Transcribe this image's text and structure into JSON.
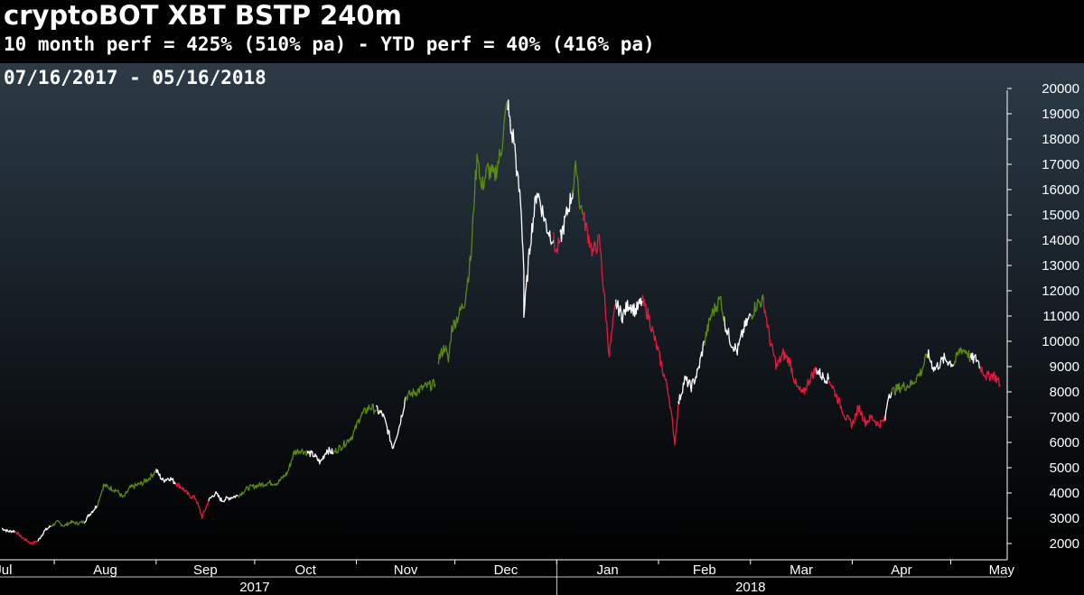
{
  "header": {
    "title": "cryptoBOT XBT BSTP 240m",
    "subtitle": "10 month perf = 425% (510% pa) - YTD perf = 40% (416% pa)",
    "date_range": "07/16/2017 - 05/16/2018"
  },
  "colors": {
    "up_signal": "#5a8a12",
    "neutral": "#ffffff",
    "down_signal": "#e8173c",
    "axis_text": "#ffffff",
    "background_top": "#2c3b47",
    "background_bottom": "#000000"
  },
  "chart_data": {
    "type": "line",
    "title": "cryptoBOT XBT BSTP 240m",
    "xlabel": "",
    "ylabel": "",
    "ylim": [
      1400,
      20800
    ],
    "y_ticks": [
      2000,
      3000,
      4000,
      5000,
      6000,
      7000,
      8000,
      9000,
      10000,
      11000,
      12000,
      13000,
      14000,
      15000,
      16000,
      17000,
      18000,
      19000,
      20000
    ],
    "x_start": "2017-07-16",
    "x_end": "2018-05-16",
    "month_ticks": [
      {
        "label": "Jul",
        "date": "2017-07-01"
      },
      {
        "label": "Aug",
        "date": "2017-08-01"
      },
      {
        "label": "Sep",
        "date": "2017-09-01"
      },
      {
        "label": "Oct",
        "date": "2017-10-01"
      },
      {
        "label": "Nov",
        "date": "2017-11-01"
      },
      {
        "label": "Dec",
        "date": "2017-12-01"
      },
      {
        "label": "Jan",
        "date": "2018-01-01"
      },
      {
        "label": "Feb",
        "date": "2018-02-01"
      },
      {
        "label": "Mar",
        "date": "2018-03-01"
      },
      {
        "label": "Apr",
        "date": "2018-04-01"
      },
      {
        "label": "May",
        "date": "2018-05-01"
      }
    ],
    "year_labels": [
      {
        "label": "2017",
        "date": "2017-10-01"
      },
      {
        "label": "2018",
        "date": "2018-03-01"
      }
    ],
    "segments": [
      {
        "signal": "neutral",
        "points": [
          [
            "2017-07-16",
            2600
          ],
          [
            "2017-07-18",
            2480
          ],
          [
            "2017-07-20",
            2500
          ]
        ]
      },
      {
        "signal": "down",
        "points": [
          [
            "2017-07-20",
            2500
          ],
          [
            "2017-07-22",
            2250
          ],
          [
            "2017-07-25",
            2000
          ],
          [
            "2017-07-27",
            2100
          ]
        ]
      },
      {
        "signal": "neutral",
        "points": [
          [
            "2017-07-27",
            2100
          ],
          [
            "2017-07-29",
            2500
          ],
          [
            "2017-07-31",
            2700
          ]
        ]
      },
      {
        "signal": "up",
        "points": [
          [
            "2017-07-31",
            2700
          ],
          [
            "2017-08-02",
            2850
          ],
          [
            "2017-08-04",
            2700
          ],
          [
            "2017-08-06",
            2850
          ],
          [
            "2017-08-08",
            2800
          ],
          [
            "2017-08-10",
            2850
          ]
        ]
      },
      {
        "signal": "neutral",
        "points": [
          [
            "2017-08-10",
            2850
          ],
          [
            "2017-08-12",
            3200
          ],
          [
            "2017-08-14",
            3500
          ]
        ]
      },
      {
        "signal": "up",
        "points": [
          [
            "2017-08-14",
            3500
          ],
          [
            "2017-08-16",
            4300
          ],
          [
            "2017-08-18",
            4200
          ],
          [
            "2017-08-20",
            4100
          ],
          [
            "2017-08-22",
            3800
          ],
          [
            "2017-08-24",
            4200
          ],
          [
            "2017-08-26",
            4300
          ],
          [
            "2017-08-28",
            4400
          ],
          [
            "2017-08-30",
            4600
          ],
          [
            "2017-09-01",
            4900
          ]
        ]
      },
      {
        "signal": "neutral",
        "points": [
          [
            "2017-09-01",
            4900
          ],
          [
            "2017-09-03",
            4500
          ],
          [
            "2017-09-05",
            4600
          ],
          [
            "2017-09-07",
            4400
          ]
        ]
      },
      {
        "signal": "down",
        "points": [
          [
            "2017-09-07",
            4400
          ],
          [
            "2017-09-09",
            4200
          ],
          [
            "2017-09-11",
            3900
          ],
          [
            "2017-09-13",
            3800
          ],
          [
            "2017-09-15",
            3050
          ],
          [
            "2017-09-17",
            3700
          ]
        ]
      },
      {
        "signal": "neutral",
        "points": [
          [
            "2017-09-17",
            3700
          ],
          [
            "2017-09-19",
            4000
          ],
          [
            "2017-09-21",
            3700
          ],
          [
            "2017-09-23",
            3800
          ],
          [
            "2017-09-26",
            3900
          ]
        ]
      },
      {
        "signal": "up",
        "points": [
          [
            "2017-09-26",
            3900
          ],
          [
            "2017-09-29",
            4200
          ],
          [
            "2017-10-02",
            4300
          ],
          [
            "2017-10-05",
            4400
          ],
          [
            "2017-10-08",
            4400
          ],
          [
            "2017-10-11",
            4800
          ],
          [
            "2017-10-13",
            5600
          ],
          [
            "2017-10-15",
            5700
          ],
          [
            "2017-10-17",
            5600
          ]
        ]
      },
      {
        "signal": "neutral",
        "points": [
          [
            "2017-10-17",
            5600
          ],
          [
            "2017-10-19",
            5500
          ],
          [
            "2017-10-21",
            5200
          ],
          [
            "2017-10-23",
            5700
          ],
          [
            "2017-10-25",
            5600
          ]
        ]
      },
      {
        "signal": "up",
        "points": [
          [
            "2017-10-25",
            5600
          ],
          [
            "2017-10-28",
            5900
          ],
          [
            "2017-10-31",
            6300
          ],
          [
            "2017-11-02",
            7000
          ],
          [
            "2017-11-05",
            7400
          ],
          [
            "2017-11-07",
            7300
          ]
        ]
      },
      {
        "signal": "neutral",
        "points": [
          [
            "2017-11-07",
            7300
          ],
          [
            "2017-11-09",
            7100
          ],
          [
            "2017-11-11",
            6300
          ],
          [
            "2017-11-12",
            5800
          ],
          [
            "2017-11-14",
            6600
          ],
          [
            "2017-11-16",
            7800
          ]
        ]
      },
      {
        "signal": "up",
        "points": [
          [
            "2017-11-16",
            7800
          ],
          [
            "2017-11-19",
            8000
          ],
          [
            "2017-11-22",
            8200
          ],
          [
            "2017-11-25",
            8300
          ]
        ]
      },
      {
        "signal": "up",
        "points": [
          [
            "2017-11-26",
            9300
          ],
          [
            "2017-11-28",
            9800
          ],
          [
            "2017-11-29",
            9200
          ],
          [
            "2017-11-30",
            10500
          ],
          [
            "2017-12-02",
            11000
          ],
          [
            "2017-12-04",
            11600
          ],
          [
            "2017-12-06",
            13500
          ],
          [
            "2017-12-07",
            16000
          ],
          [
            "2017-12-08",
            17500
          ],
          [
            "2017-12-09",
            16000
          ],
          [
            "2017-12-11",
            16800
          ],
          [
            "2017-12-13",
            16500
          ],
          [
            "2017-12-15",
            17500
          ],
          [
            "2017-12-17",
            19500
          ]
        ]
      },
      {
        "signal": "neutral",
        "points": [
          [
            "2017-12-17",
            19500
          ],
          [
            "2017-12-18",
            18300
          ],
          [
            "2017-12-19",
            18000
          ],
          [
            "2017-12-20",
            16500
          ],
          [
            "2017-12-21",
            15500
          ],
          [
            "2017-12-22",
            13000
          ],
          [
            "2017-12-22",
            11000
          ],
          [
            "2017-12-24",
            14000
          ],
          [
            "2017-12-26",
            16000
          ],
          [
            "2017-12-27",
            15500
          ],
          [
            "2017-12-29",
            14500
          ],
          [
            "2017-12-31",
            14000
          ]
        ]
      },
      {
        "signal": "down",
        "points": [
          [
            "2017-12-31",
            14000
          ],
          [
            "2018-01-01",
            13500
          ],
          [
            "2018-01-02",
            14000
          ]
        ]
      },
      {
        "signal": "neutral",
        "points": [
          [
            "2018-01-02",
            14000
          ],
          [
            "2018-01-04",
            15000
          ],
          [
            "2018-01-06",
            16000
          ]
        ]
      },
      {
        "signal": "up",
        "points": [
          [
            "2018-01-06",
            16000
          ],
          [
            "2018-01-07",
            17000
          ],
          [
            "2018-01-08",
            15500
          ],
          [
            "2018-01-09",
            15000
          ]
        ]
      },
      {
        "signal": "down",
        "points": [
          [
            "2018-01-09",
            15000
          ],
          [
            "2018-01-11",
            14000
          ],
          [
            "2018-01-12",
            13500
          ],
          [
            "2018-01-14",
            14000
          ],
          [
            "2018-01-16",
            11000
          ],
          [
            "2018-01-17",
            9500
          ],
          [
            "2018-01-19",
            11500
          ]
        ]
      },
      {
        "signal": "neutral",
        "points": [
          [
            "2018-01-19",
            11500
          ],
          [
            "2018-01-21",
            11000
          ],
          [
            "2018-01-23",
            11500
          ],
          [
            "2018-01-25",
            11200
          ],
          [
            "2018-01-27",
            11600
          ]
        ]
      },
      {
        "signal": "down",
        "points": [
          [
            "2018-01-27",
            11600
          ],
          [
            "2018-01-29",
            11000
          ],
          [
            "2018-01-31",
            10000
          ],
          [
            "2018-02-02",
            9000
          ],
          [
            "2018-02-04",
            8000
          ],
          [
            "2018-02-06",
            6000
          ],
          [
            "2018-02-07",
            7500
          ]
        ]
      },
      {
        "signal": "neutral",
        "points": [
          [
            "2018-02-07",
            7500
          ],
          [
            "2018-02-09",
            8500
          ],
          [
            "2018-02-11",
            8200
          ],
          [
            "2018-02-13",
            8800
          ],
          [
            "2018-02-15",
            10000
          ]
        ]
      },
      {
        "signal": "up",
        "points": [
          [
            "2018-02-15",
            10000
          ],
          [
            "2018-02-17",
            11000
          ],
          [
            "2018-02-19",
            11500
          ],
          [
            "2018-02-20",
            11700
          ],
          [
            "2018-02-21",
            10800
          ]
        ]
      },
      {
        "signal": "neutral",
        "points": [
          [
            "2018-02-21",
            10800
          ],
          [
            "2018-02-23",
            10000
          ],
          [
            "2018-02-25",
            9600
          ],
          [
            "2018-02-27",
            10500
          ],
          [
            "2018-03-01",
            11000
          ]
        ]
      },
      {
        "signal": "up",
        "points": [
          [
            "2018-03-01",
            11000
          ],
          [
            "2018-03-03",
            11500
          ],
          [
            "2018-03-05",
            11600
          ]
        ]
      },
      {
        "signal": "down",
        "points": [
          [
            "2018-03-05",
            11600
          ],
          [
            "2018-03-07",
            10000
          ],
          [
            "2018-03-09",
            9000
          ],
          [
            "2018-03-11",
            9500
          ],
          [
            "2018-03-13",
            9200
          ],
          [
            "2018-03-15",
            8200
          ],
          [
            "2018-03-17",
            7900
          ],
          [
            "2018-03-19",
            8500
          ],
          [
            "2018-03-21",
            8900
          ]
        ]
      },
      {
        "signal": "neutral",
        "points": [
          [
            "2018-03-21",
            8900
          ],
          [
            "2018-03-23",
            8600
          ],
          [
            "2018-03-25",
            8500
          ]
        ]
      },
      {
        "signal": "down",
        "points": [
          [
            "2018-03-25",
            8500
          ],
          [
            "2018-03-27",
            7900
          ],
          [
            "2018-03-30",
            7000
          ],
          [
            "2018-04-01",
            6700
          ],
          [
            "2018-04-03",
            7400
          ],
          [
            "2018-04-05",
            6800
          ],
          [
            "2018-04-07",
            7000
          ],
          [
            "2018-04-09",
            6700
          ],
          [
            "2018-04-11",
            6900
          ]
        ]
      },
      {
        "signal": "neutral",
        "points": [
          [
            "2018-04-11",
            6900
          ],
          [
            "2018-04-12",
            7900
          ],
          [
            "2018-04-13",
            8000
          ]
        ]
      },
      {
        "signal": "up",
        "points": [
          [
            "2018-04-13",
            8000
          ],
          [
            "2018-04-16",
            8200
          ],
          [
            "2018-04-19",
            8300
          ],
          [
            "2018-04-22",
            8800
          ],
          [
            "2018-04-24",
            9500
          ]
        ]
      },
      {
        "signal": "neutral",
        "points": [
          [
            "2018-04-24",
            9500
          ],
          [
            "2018-04-26",
            8900
          ],
          [
            "2018-04-29",
            9300
          ],
          [
            "2018-05-02",
            9100
          ]
        ]
      },
      {
        "signal": "up",
        "points": [
          [
            "2018-05-02",
            9100
          ],
          [
            "2018-05-04",
            9700
          ],
          [
            "2018-05-06",
            9600
          ],
          [
            "2018-05-07",
            9300
          ]
        ]
      },
      {
        "signal": "neutral",
        "points": [
          [
            "2018-05-07",
            9300
          ],
          [
            "2018-05-09",
            9300
          ],
          [
            "2018-05-10",
            9000
          ]
        ]
      },
      {
        "signal": "down",
        "points": [
          [
            "2018-05-10",
            9000
          ],
          [
            "2018-05-12",
            8600
          ],
          [
            "2018-05-14",
            8700
          ],
          [
            "2018-05-16",
            8300
          ]
        ]
      }
    ]
  }
}
